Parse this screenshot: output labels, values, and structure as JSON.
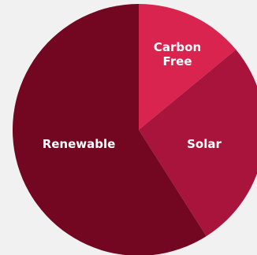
{
  "chart_data": {
    "type": "pie",
    "slices": [
      {
        "label": "Carbon Free",
        "label_lines": [
          "Carbon",
          "Free"
        ],
        "value": 14,
        "color": "#d8244f"
      },
      {
        "label": "Solar",
        "label_lines": [
          "Solar"
        ],
        "value": 27,
        "color": "#a8143c"
      },
      {
        "label": "Renewable",
        "label_lines": [
          "Renewable"
        ],
        "value": 59,
        "color": "#730721"
      }
    ],
    "start_angle_deg": 0,
    "direction": "clockwise",
    "legend": "none",
    "title": "",
    "background": "#f1f1f2"
  }
}
